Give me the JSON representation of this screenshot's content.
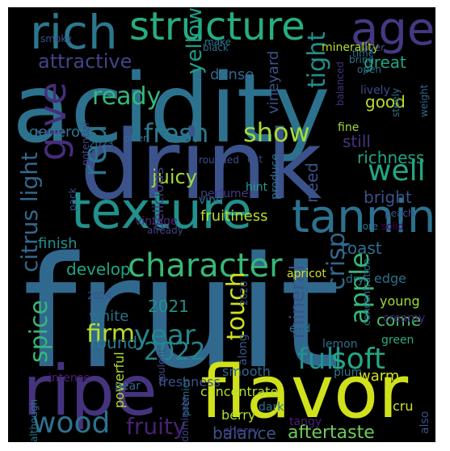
{
  "cloud": {
    "background": "#000000",
    "words": [
      {
        "text": "fruit",
        "color": "#31688e"
      },
      {
        "text": "acidity",
        "color": "#2c728e"
      },
      {
        "text": "drink",
        "color": "#3b528b"
      },
      {
        "text": "flavor",
        "color": "#d0e11c"
      },
      {
        "text": "ripe",
        "color": "#46337e"
      },
      {
        "text": "texture",
        "color": "#21918c"
      },
      {
        "text": "structure",
        "color": "#27ad81"
      },
      {
        "text": "rich",
        "color": "#2a788e"
      },
      {
        "text": "age",
        "color": "#443983"
      },
      {
        "text": "tannin",
        "color": "#2c728e"
      },
      {
        "text": "character",
        "color": "#37b878"
      },
      {
        "text": "wood",
        "color": "#2c728e"
      },
      {
        "text": "full",
        "color": "#21918c"
      },
      {
        "text": "soft",
        "color": "#22a785"
      },
      {
        "text": "show",
        "color": "#a5db36"
      },
      {
        "text": "well",
        "color": "#22a785"
      },
      {
        "text": "give",
        "color": "#472d7b"
      },
      {
        "text": "fresh",
        "color": "#2a788e"
      },
      {
        "text": "year",
        "color": "#25848e"
      },
      {
        "text": "2022",
        "color": "#25848e"
      },
      {
        "text": "spice",
        "color": "#35b779"
      },
      {
        "text": "citrus light",
        "color": "#31688e"
      },
      {
        "text": "attractive",
        "color": "#414487"
      },
      {
        "text": "fruity",
        "color": "#482173"
      },
      {
        "text": "red",
        "color": "#2c728e"
      },
      {
        "text": "crisp",
        "color": "#31688e"
      },
      {
        "text": "apple",
        "color": "#35b779"
      },
      {
        "text": "yellow",
        "color": "#1f9e89"
      },
      {
        "text": "ready",
        "color": "#35b779"
      },
      {
        "text": "firm",
        "color": "#b5de2b"
      },
      {
        "text": "touch",
        "color": "#d0e11c"
      },
      {
        "text": "tight",
        "color": "#21918c"
      },
      {
        "text": "mineral",
        "color": "#3b528b"
      },
      {
        "text": "aftertaste",
        "color": "#6ccd5a"
      },
      {
        "text": "balance",
        "color": "#3b528b"
      },
      {
        "text": "juicy",
        "color": "#a0da39"
      },
      {
        "text": "2021",
        "color": "#21918c"
      },
      {
        "text": "great",
        "color": "#20a486"
      },
      {
        "text": "bright",
        "color": "#3b528b"
      },
      {
        "text": "richness",
        "color": "#20a486"
      },
      {
        "text": "good",
        "color": "#b5de2b"
      },
      {
        "text": "toast",
        "color": "#2e6f8e"
      },
      {
        "text": "generous",
        "color": "#2a788e"
      },
      {
        "text": "fruitiness",
        "color": "#b5de2b"
      },
      {
        "text": "develop",
        "color": "#20a486"
      },
      {
        "text": "come",
        "color": "#48c16e"
      },
      {
        "text": "still",
        "color": "#46337e"
      },
      {
        "text": "need",
        "color": "#3b528b"
      },
      {
        "text": "dense",
        "color": "#31688e"
      },
      {
        "text": "vineyard",
        "color": "#3b528b"
      },
      {
        "text": "round",
        "color": "#2a788e"
      },
      {
        "text": "finish",
        "color": "#21918c"
      },
      {
        "text": "white",
        "color": "#2c728e"
      },
      {
        "text": "delicious",
        "color": "#443983"
      },
      {
        "text": "perfume",
        "color": "#443983"
      },
      {
        "text": "edge",
        "color": "#2e6f8e"
      },
      {
        "text": "minerality",
        "color": "#b5de2b"
      },
      {
        "text": "concentrate",
        "color": "#b5de2b"
      },
      {
        "text": "freshness",
        "color": "#3b528b"
      },
      {
        "text": "smooth",
        "color": "#31688e"
      },
      {
        "text": "young",
        "color": "#a0da39"
      },
      {
        "text": "green",
        "color": "#29af7f"
      },
      {
        "text": "creamy",
        "color": "#482475"
      },
      {
        "text": "apricot",
        "color": "#d0e11c"
      },
      {
        "text": "powerful",
        "color": "#b5de2b"
      },
      {
        "text": "berry",
        "color": "#b5de2b"
      },
      {
        "text": "cherry",
        "color": "#414487"
      },
      {
        "text": "pear",
        "color": "#31688e"
      },
      {
        "text": "plum",
        "color": "#2a788e"
      },
      {
        "text": "lemon",
        "color": "#2e6f8e"
      },
      {
        "text": "end",
        "color": "#2e6f8e"
      },
      {
        "text": "dark",
        "color": "#2c728e"
      },
      {
        "text": "intense",
        "color": "#482173"
      },
      {
        "text": "warm",
        "color": "#d0e11c"
      },
      {
        "text": "cru",
        "color": "#d0e11c"
      },
      {
        "text": "also",
        "color": "#3b528b"
      },
      {
        "text": "along",
        "color": "#38588c"
      },
      {
        "text": "tangy",
        "color": "#482173"
      },
      {
        "text": "dry",
        "color": "#2c728e"
      },
      {
        "text": "fine",
        "color": "#a0da39"
      },
      {
        "text": "core",
        "color": "#2c728e"
      },
      {
        "text": "solid",
        "color": "#440154"
      },
      {
        "text": "peach",
        "color": "#3b528b"
      },
      {
        "text": "vine",
        "color": "#2a788e"
      },
      {
        "text": "hint",
        "color": "#1f9e89"
      },
      {
        "text": "produce",
        "color": "#2e6f8e"
      },
      {
        "text": "vintage",
        "color": "#482878"
      },
      {
        "text": "pack",
        "color": "#3b528b"
      },
      {
        "text": "already",
        "color": "#414487"
      },
      {
        "text": "lively",
        "color": "#3e4989"
      },
      {
        "text": "balanced",
        "color": "#46337e"
      },
      {
        "text": "steely",
        "color": "#2e6f8e"
      },
      {
        "text": "weight",
        "color": "#31688e"
      },
      {
        "text": "rounded",
        "color": "#3b528b"
      },
      {
        "text": "cut",
        "color": "#3b528b"
      },
      {
        "text": "2023",
        "color": "#2e6f8e"
      },
      {
        "text": "offer",
        "color": "#2e6f8e"
      },
      {
        "text": "potential",
        "color": "#3e4989"
      },
      {
        "text": "black",
        "color": "#2e6f8e"
      },
      {
        "text": "make",
        "color": "#2a788e"
      },
      {
        "text": "smoky",
        "color": "#3b528b"
      },
      {
        "text": "time",
        "color": "#2c728e"
      },
      {
        "text": "layer",
        "color": "#3b528b"
      },
      {
        "text": "bring",
        "color": "#2a788e"
      },
      {
        "text": "open",
        "color": "#2e6f8e"
      },
      {
        "text": "2024",
        "color": "#3b528b"
      },
      {
        "text": "2020",
        "color": "#3b528b"
      },
      {
        "text": "concentration",
        "color": "#2e6f8e"
      },
      {
        "text": "premier",
        "color": "#2e6f8e"
      },
      {
        "text": "dominate",
        "color": "#3e4989"
      },
      {
        "text": "opulent",
        "color": "#3e4989"
      },
      {
        "text": "although",
        "color": "#2c728e"
      }
    ]
  }
}
